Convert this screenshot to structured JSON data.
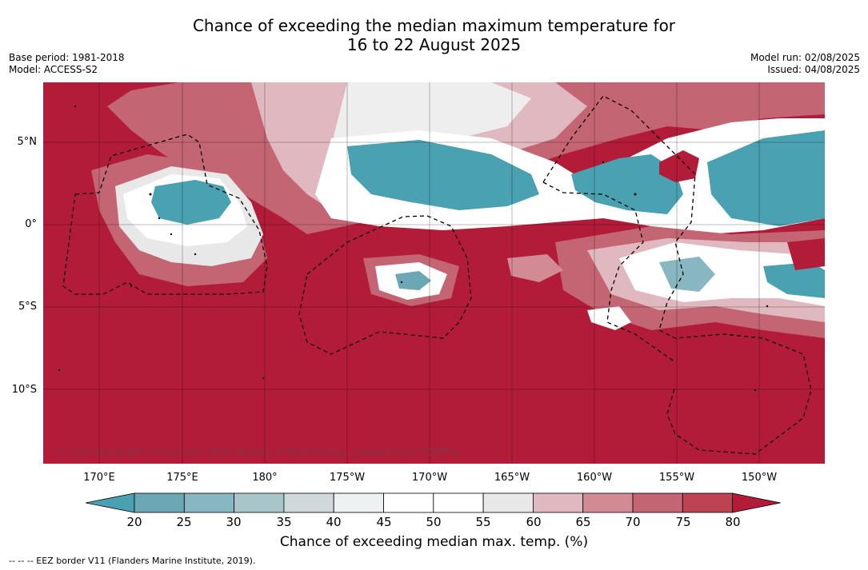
{
  "title": {
    "line1": "Chance of exceeding the median maximum temperature for",
    "line2": "16 to 22 August 2025"
  },
  "meta": {
    "base_period": "Base period: 1981-2018",
    "model": "Model: ACCESS-S2",
    "model_run": "Model run: 02/08/2025",
    "issued": "Issued: 04/08/2025"
  },
  "map": {
    "lon_labels": [
      "170°E",
      "175°E",
      "180°",
      "175°W",
      "170°W",
      "165°W",
      "160°W",
      "155°W",
      "150°W"
    ],
    "lat_labels": [
      "5°N",
      "0°",
      "5°S",
      "10°S"
    ],
    "copyright": "© Commonwealth of Australia 2025, Bureau of Meteorology, supported by COSPPac",
    "background_category": "80+",
    "colors": {
      "ocean_high": "#b31c38",
      "land_outline": "#000000",
      "eez_line": "#000000"
    }
  },
  "colorbar": {
    "label": "Chance of exceeding median max. temp. (%)",
    "ticks": [
      "20",
      "25",
      "30",
      "35",
      "40",
      "45",
      "50",
      "55",
      "60",
      "65",
      "70",
      "75",
      "80"
    ],
    "colors": [
      "#4aa1b1",
      "#6aa8b5",
      "#88b7c2",
      "#a8c5ca",
      "#cfd9db",
      "#eef1f2",
      "#ffffff",
      "#ffffff",
      "#e8e8e8",
      "#e0b8bf",
      "#d28b95",
      "#c46574",
      "#bd4252",
      "#b31c38"
    ]
  },
  "footer": {
    "eez_note": "--  --  -- EEZ border V11 (Flanders Marine Institute, 2019)."
  }
}
